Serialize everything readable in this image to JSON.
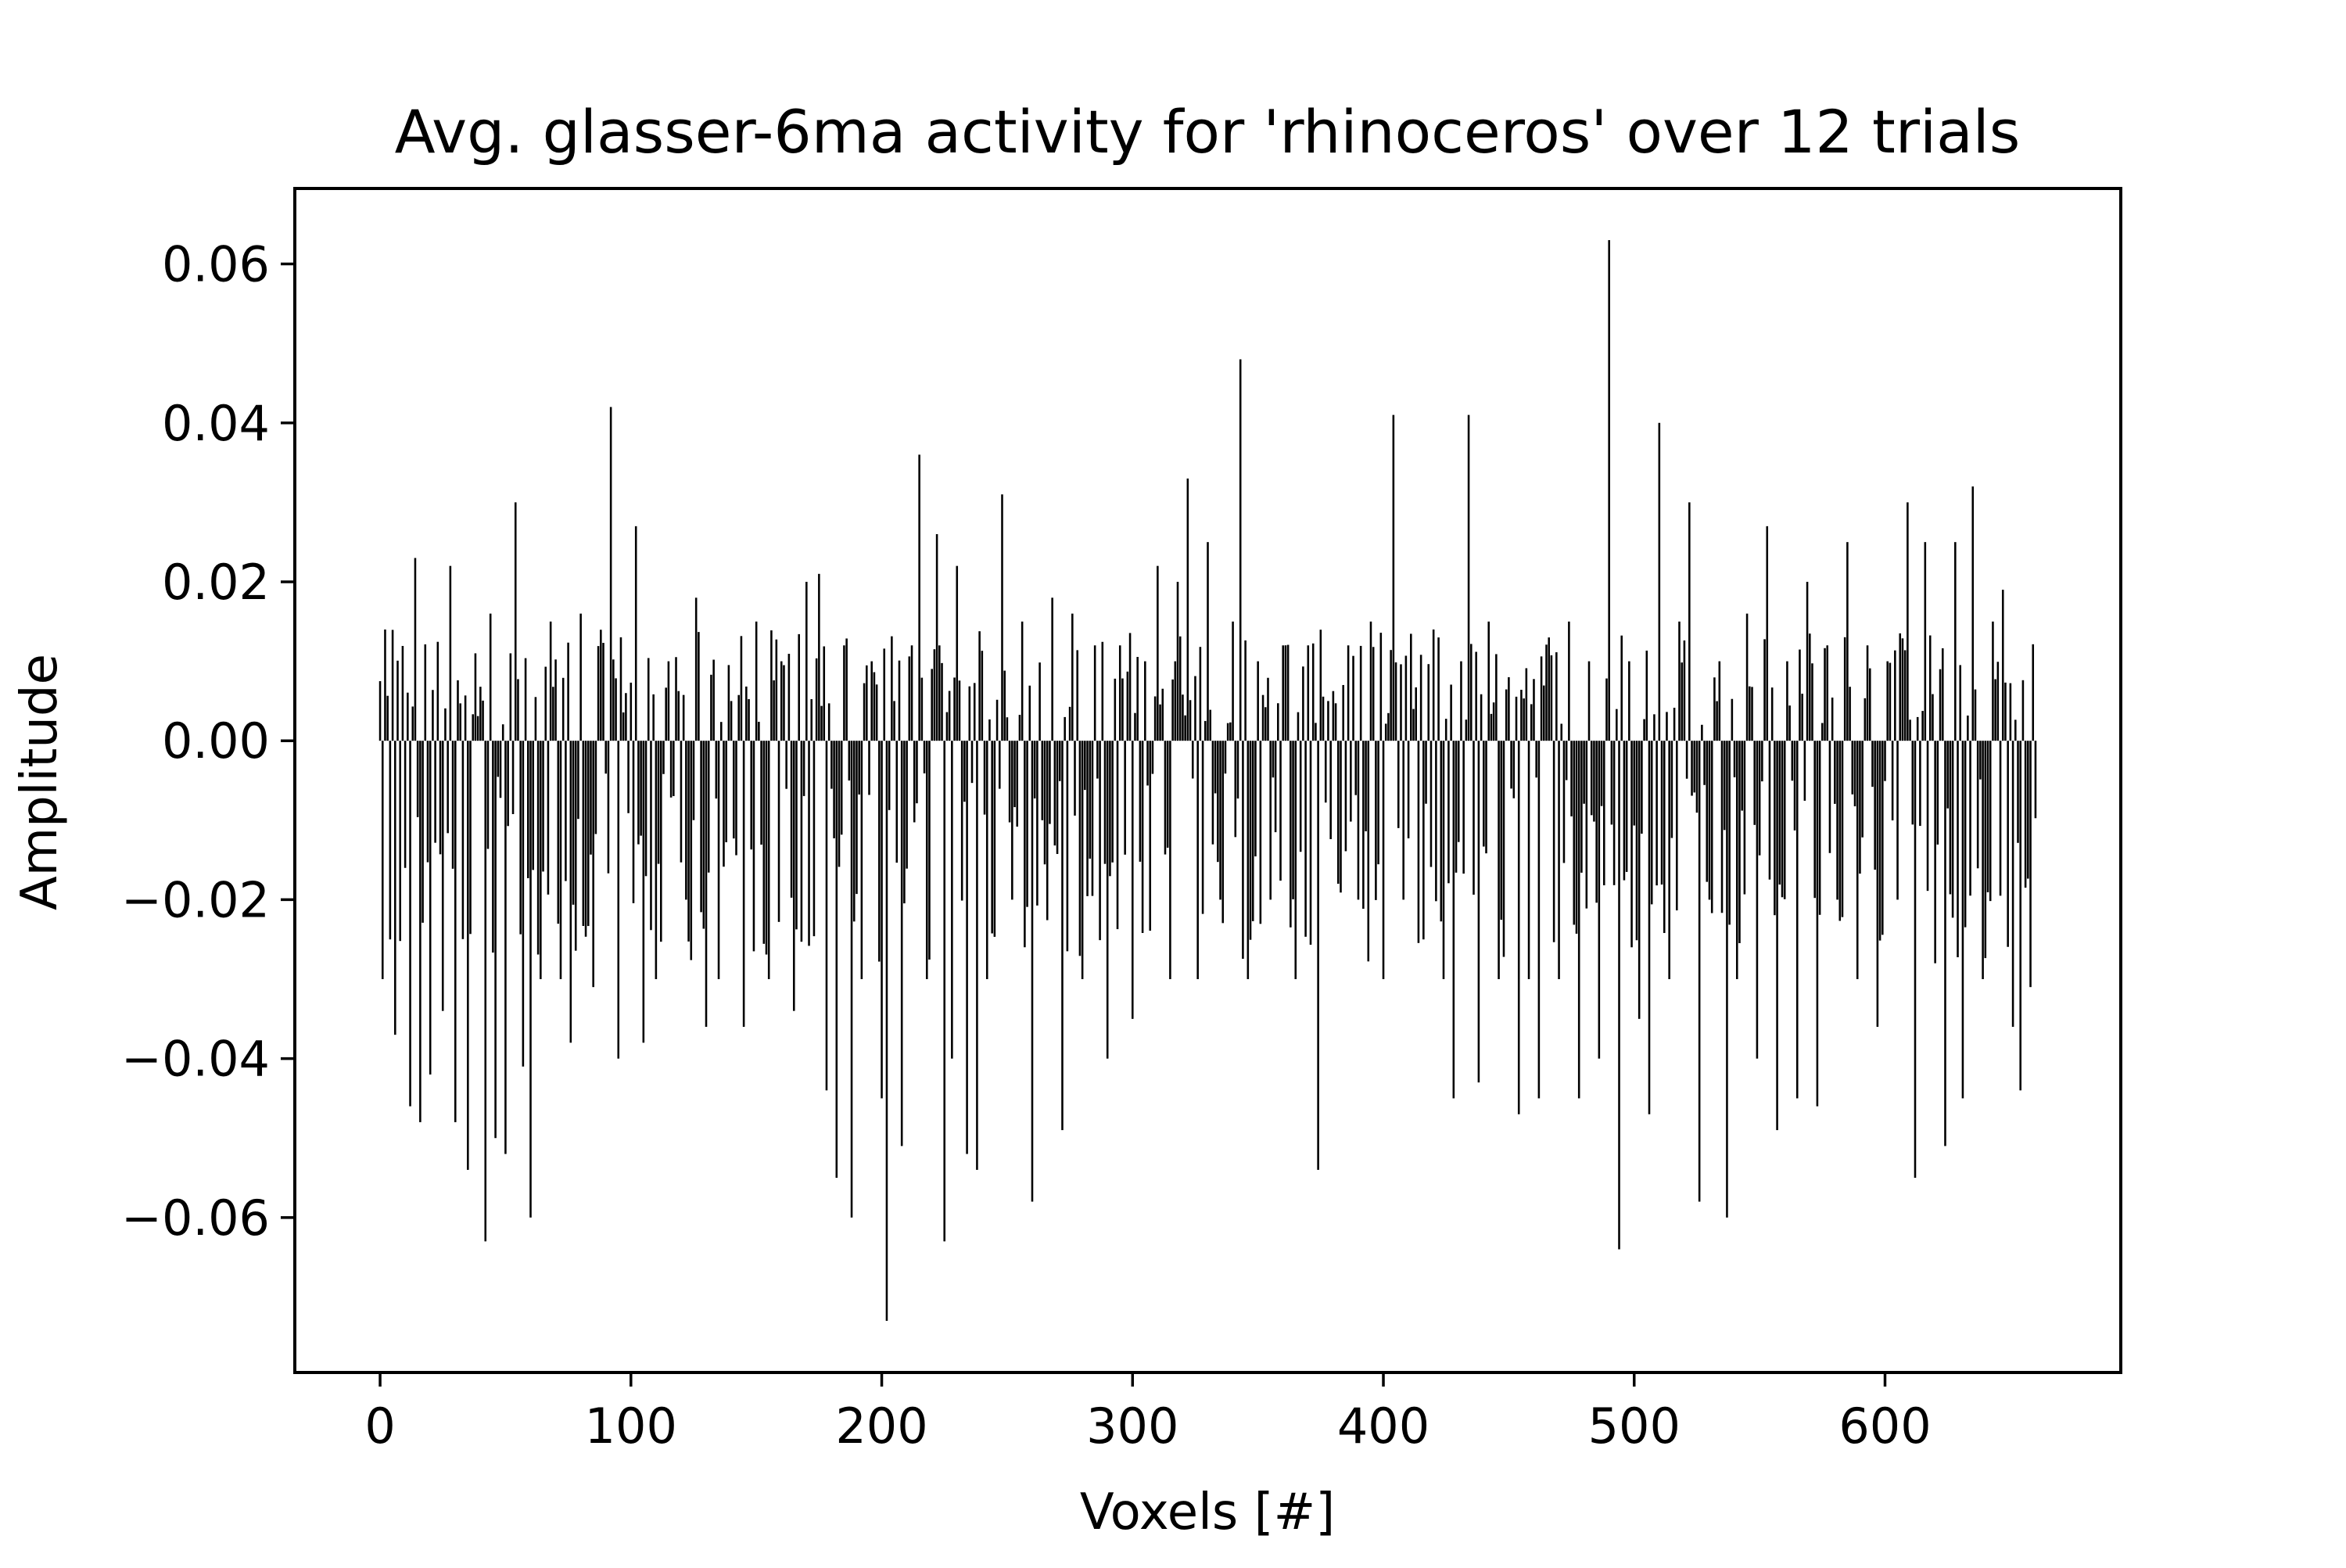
{
  "chart_data": {
    "type": "bar",
    "title": "Avg. glasser-6ma activity for 'rhinoceros' over 12 trials",
    "xlabel": "Voxels [#]",
    "ylabel": "Amplitude",
    "xlim": [
      -34,
      694
    ],
    "ylim": [
      -0.0795,
      0.0695
    ],
    "xticks": [
      0,
      100,
      200,
      300,
      400,
      500,
      600
    ],
    "xtick_labels": [
      "0",
      "100",
      "200",
      "300",
      "400",
      "500",
      "600"
    ],
    "yticks": [
      -0.06,
      -0.04,
      -0.02,
      0.0,
      0.02,
      0.04,
      0.06
    ],
    "ytick_labels": [
      "−0.06",
      "−0.04",
      "−0.02",
      "0.00",
      "0.02",
      "0.04",
      "0.06"
    ],
    "grid": false,
    "legend": "none",
    "bar_color": "#000000",
    "n_voxels": 661,
    "anchors": [
      [
        0,
        0.0075
      ],
      [
        1,
        -0.03
      ],
      [
        2,
        0.014
      ],
      [
        4,
        -0.025
      ],
      [
        6,
        -0.037
      ],
      [
        10,
        -0.016
      ],
      [
        12,
        -0.046
      ],
      [
        14,
        0.023
      ],
      [
        16,
        -0.048
      ],
      [
        20,
        -0.042
      ],
      [
        25,
        -0.034
      ],
      [
        28,
        0.022
      ],
      [
        30,
        -0.048
      ],
      [
        35,
        -0.054
      ],
      [
        38,
        0.011
      ],
      [
        42,
        -0.063
      ],
      [
        44,
        0.016
      ],
      [
        46,
        -0.05
      ],
      [
        50,
        -0.052
      ],
      [
        52,
        0.011
      ],
      [
        54,
        0.03
      ],
      [
        57,
        -0.041
      ],
      [
        60,
        -0.06
      ],
      [
        64,
        -0.03
      ],
      [
        68,
        0.015
      ],
      [
        72,
        -0.03
      ],
      [
        76,
        -0.038
      ],
      [
        80,
        0.016
      ],
      [
        85,
        -0.031
      ],
      [
        92,
        0.042
      ],
      [
        95,
        -0.04
      ],
      [
        98,
        0.006
      ],
      [
        102,
        0.027
      ],
      [
        105,
        -0.038
      ],
      [
        110,
        -0.03
      ],
      [
        115,
        0.01
      ],
      [
        122,
        -0.02
      ],
      [
        126,
        0.018
      ],
      [
        130,
        -0.036
      ],
      [
        135,
        -0.03
      ],
      [
        140,
        0.005
      ],
      [
        145,
        -0.036
      ],
      [
        150,
        0.015
      ],
      [
        155,
        -0.03
      ],
      [
        160,
        0.01
      ],
      [
        165,
        -0.034
      ],
      [
        170,
        0.02
      ],
      [
        175,
        0.021
      ],
      [
        178,
        -0.044
      ],
      [
        182,
        -0.055
      ],
      [
        185,
        0.012
      ],
      [
        188,
        -0.06
      ],
      [
        192,
        -0.03
      ],
      [
        196,
        0.01
      ],
      [
        200,
        -0.045
      ],
      [
        202,
        -0.073
      ],
      [
        205,
        0.005
      ],
      [
        208,
        -0.051
      ],
      [
        212,
        0.012
      ],
      [
        215,
        0.036
      ],
      [
        218,
        -0.03
      ],
      [
        222,
        0.026
      ],
      [
        225,
        -0.063
      ],
      [
        228,
        -0.04
      ],
      [
        230,
        0.022
      ],
      [
        234,
        -0.052
      ],
      [
        238,
        -0.054
      ],
      [
        242,
        -0.03
      ],
      [
        248,
        0.031
      ],
      [
        252,
        -0.02
      ],
      [
        256,
        0.015
      ],
      [
        260,
        -0.058
      ],
      [
        264,
        -0.01
      ],
      [
        268,
        0.018
      ],
      [
        272,
        -0.049
      ],
      [
        276,
        0.016
      ],
      [
        280,
        -0.03
      ],
      [
        285,
        0.012
      ],
      [
        290,
        -0.04
      ],
      [
        295,
        0.012
      ],
      [
        300,
        -0.035
      ],
      [
        305,
        0.01
      ],
      [
        310,
        0.022
      ],
      [
        315,
        -0.03
      ],
      [
        318,
        0.02
      ],
      [
        322,
        0.033
      ],
      [
        326,
        -0.03
      ],
      [
        330,
        0.025
      ],
      [
        335,
        -0.02
      ],
      [
        340,
        0.015
      ],
      [
        343,
        0.048
      ],
      [
        346,
        -0.03
      ],
      [
        350,
        0.01
      ],
      [
        355,
        -0.02
      ],
      [
        360,
        0.012
      ],
      [
        365,
        -0.03
      ],
      [
        370,
        0.012
      ],
      [
        374,
        -0.054
      ],
      [
        378,
        0.005
      ],
      [
        382,
        -0.018
      ],
      [
        386,
        0.012
      ],
      [
        390,
        -0.02
      ],
      [
        395,
        0.015
      ],
      [
        400,
        -0.03
      ],
      [
        404,
        0.041
      ],
      [
        408,
        -0.02
      ],
      [
        412,
        0.004
      ],
      [
        416,
        -0.025
      ],
      [
        420,
        0.014
      ],
      [
        424,
        -0.03
      ],
      [
        428,
        -0.045
      ],
      [
        431,
        0.01
      ],
      [
        434,
        0.041
      ],
      [
        438,
        -0.043
      ],
      [
        442,
        0.015
      ],
      [
        446,
        -0.03
      ],
      [
        450,
        0.008
      ],
      [
        454,
        -0.047
      ],
      [
        458,
        -0.03
      ],
      [
        462,
        -0.045
      ],
      [
        466,
        0.013
      ],
      [
        470,
        -0.03
      ],
      [
        474,
        0.015
      ],
      [
        478,
        -0.045
      ],
      [
        482,
        0.01
      ],
      [
        486,
        -0.04
      ],
      [
        490,
        0.063
      ],
      [
        494,
        -0.064
      ],
      [
        498,
        0.01
      ],
      [
        502,
        -0.035
      ],
      [
        506,
        -0.047
      ],
      [
        510,
        0.04
      ],
      [
        514,
        -0.03
      ],
      [
        518,
        0.015
      ],
      [
        522,
        0.03
      ],
      [
        526,
        -0.058
      ],
      [
        530,
        -0.02
      ],
      [
        534,
        0.01
      ],
      [
        537,
        -0.06
      ],
      [
        541,
        -0.03
      ],
      [
        545,
        0.016
      ],
      [
        549,
        -0.04
      ],
      [
        553,
        0.027
      ],
      [
        557,
        -0.049
      ],
      [
        561,
        0.01
      ],
      [
        565,
        -0.045
      ],
      [
        569,
        0.02
      ],
      [
        573,
        -0.046
      ],
      [
        577,
        0.012
      ],
      [
        581,
        -0.02
      ],
      [
        585,
        0.025
      ],
      [
        589,
        -0.03
      ],
      [
        593,
        0.012
      ],
      [
        597,
        -0.036
      ],
      [
        601,
        0.01
      ],
      [
        605,
        -0.02
      ],
      [
        609,
        0.03
      ],
      [
        612,
        -0.055
      ],
      [
        616,
        0.025
      ],
      [
        620,
        -0.028
      ],
      [
        624,
        -0.051
      ],
      [
        628,
        0.025
      ],
      [
        631,
        -0.045
      ],
      [
        635,
        0.032
      ],
      [
        639,
        -0.03
      ],
      [
        643,
        0.015
      ],
      [
        647,
        0.019
      ],
      [
        651,
        -0.036
      ],
      [
        654,
        -0.044
      ],
      [
        658,
        -0.031
      ],
      [
        661,
        0.006
      ]
    ]
  }
}
